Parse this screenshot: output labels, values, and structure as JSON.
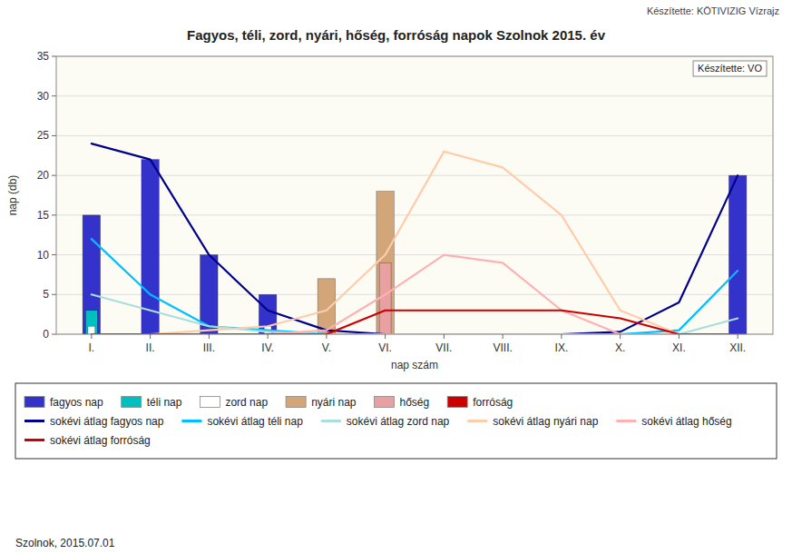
{
  "chart_data": {
    "type": "bar",
    "title": "Fagyos, téli, zord, nyári, hőség, forróság napok Szolnok 2015. év",
    "subtitle": "Készítette: KÖTIVIZIG Vízrajz",
    "annotations": [
      "Készítette: VO",
      "Szolnok, 2015.07.01"
    ],
    "xlabel": "nap szám",
    "ylabel": "nap (db)",
    "categories": [
      "I.",
      "II.",
      "III.",
      "IV.",
      "V.",
      "VI.",
      "VII.",
      "VIII.",
      "IX.",
      "X.",
      "XI.",
      "XII."
    ],
    "ylim": [
      0,
      35
    ],
    "yticks": [
      0,
      5,
      10,
      15,
      20,
      25,
      30,
      35
    ],
    "grid": true,
    "legend": "bottom",
    "series": [
      {
        "name": "fagyos nap",
        "type": "bar",
        "color": "#3333CC",
        "values": [
          15,
          22,
          10,
          5,
          0,
          0,
          0,
          0,
          0,
          0,
          0,
          20
        ]
      },
      {
        "name": "téli nap",
        "type": "bar",
        "color": "#00BFBF",
        "values": [
          3,
          0,
          0,
          0,
          0,
          0,
          0,
          0,
          0,
          0,
          0,
          0
        ]
      },
      {
        "name": "zord nap",
        "type": "bar",
        "color": "#FFFFFF",
        "values": [
          1,
          0,
          0,
          1,
          0,
          0,
          0,
          0,
          0,
          0,
          0,
          0
        ]
      },
      {
        "name": "nyári nap",
        "type": "bar",
        "color": "#D2A679",
        "values": [
          0,
          0,
          0,
          0,
          7,
          18,
          0,
          0,
          0,
          0,
          0,
          0
        ]
      },
      {
        "name": "hőség",
        "type": "bar",
        "color": "#E8A0A0",
        "values": [
          0,
          0,
          0,
          0,
          0,
          9,
          0,
          0,
          0,
          0,
          0,
          0
        ]
      },
      {
        "name": "forróság",
        "type": "bar",
        "color": "#CC0000",
        "values": [
          null,
          null,
          null,
          null,
          null,
          null,
          null,
          null,
          null,
          null,
          null,
          null
        ]
      },
      {
        "name": "sokévi átlag fagyos nap",
        "type": "line",
        "color": "#00008B",
        "values": [
          24,
          22,
          10,
          3,
          0.5,
          0,
          0,
          0,
          0,
          0.3,
          4,
          20
        ]
      },
      {
        "name": "sokévi átlag téli nap",
        "type": "line",
        "color": "#00BFFF",
        "values": [
          12,
          5,
          1,
          0.5,
          0,
          0,
          0,
          0,
          0,
          0,
          0.5,
          8
        ]
      },
      {
        "name": "sokévi átlag zord nap",
        "type": "line",
        "color": "#AADDDD",
        "values": [
          5,
          3,
          1,
          0.3,
          0,
          0,
          0,
          0,
          0,
          0,
          0,
          2
        ]
      },
      {
        "name": "sokévi átlag nyári nap",
        "type": "line",
        "color": "#FFCCAA",
        "values": [
          0,
          0,
          0.5,
          1,
          3,
          10,
          23,
          21,
          15,
          3,
          0,
          0
        ]
      },
      {
        "name": "sokévi átlag hőség",
        "type": "line",
        "color": "#FFB0B0",
        "values": [
          0,
          0,
          0,
          0,
          0.5,
          5,
          10,
          9,
          3,
          0,
          0,
          0
        ]
      },
      {
        "name": "sokévi átlag forróság",
        "type": "line",
        "color": "#CC0000",
        "values": [
          0,
          0,
          0,
          0,
          0,
          3,
          3,
          3,
          3,
          2,
          0,
          0
        ]
      }
    ]
  }
}
